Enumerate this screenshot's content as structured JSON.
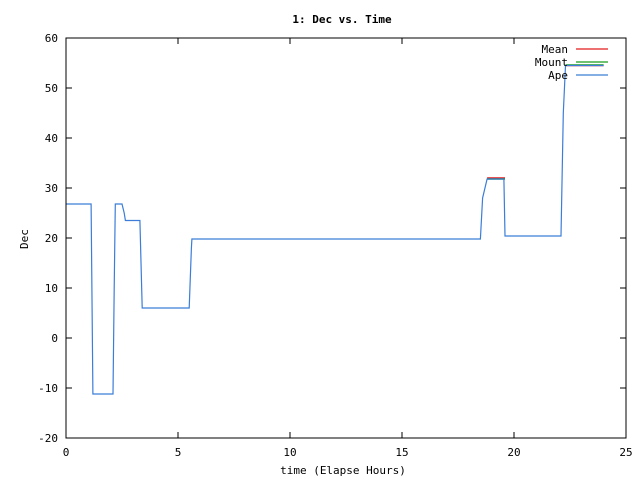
{
  "chart_data": {
    "type": "line",
    "title": "1: Dec vs. Time",
    "xlabel": "time (Elapse Hours)",
    "ylabel": "Dec",
    "xlim": [
      0,
      25
    ],
    "ylim": [
      -20,
      60
    ],
    "xticks": [
      0,
      5,
      10,
      15,
      20,
      25
    ],
    "yticks": [
      -20,
      -10,
      0,
      10,
      20,
      30,
      40,
      50,
      60
    ],
    "grid": false,
    "legend_position": "top-right",
    "series": [
      {
        "name": "Mean",
        "color": "#e41a1c",
        "x": [
          18.8,
          19.6
        ],
        "y": [
          32,
          32
        ],
        "x2": [
          22.3,
          24.0
        ],
        "y2": [
          54.5,
          54.5
        ]
      },
      {
        "name": "Mount",
        "color": "#1a9e1a",
        "x": [
          18.8,
          19.6
        ],
        "y": [
          31.8,
          31.8
        ],
        "x2": [
          22.3,
          24.0
        ],
        "y2": [
          54.6,
          54.6
        ]
      },
      {
        "name": "Ape",
        "color": "#3b7dd8",
        "x": [
          0,
          1.12,
          1.2,
          2.1,
          2.15,
          2.2,
          2.5,
          2.6,
          2.65,
          3.3,
          3.4,
          5.5,
          5.6,
          5.62,
          18.5,
          18.6,
          18.8,
          19.55,
          19.6,
          22.1,
          22.2,
          22.3,
          24.0
        ],
        "y": [
          26.8,
          26.8,
          -11.2,
          -11.2,
          10,
          26.8,
          26.8,
          25,
          23.5,
          23.5,
          6,
          6,
          18,
          19.8,
          19.8,
          28,
          31.8,
          31.8,
          20.4,
          20.4,
          45,
          54.5,
          54.5
        ]
      }
    ]
  }
}
